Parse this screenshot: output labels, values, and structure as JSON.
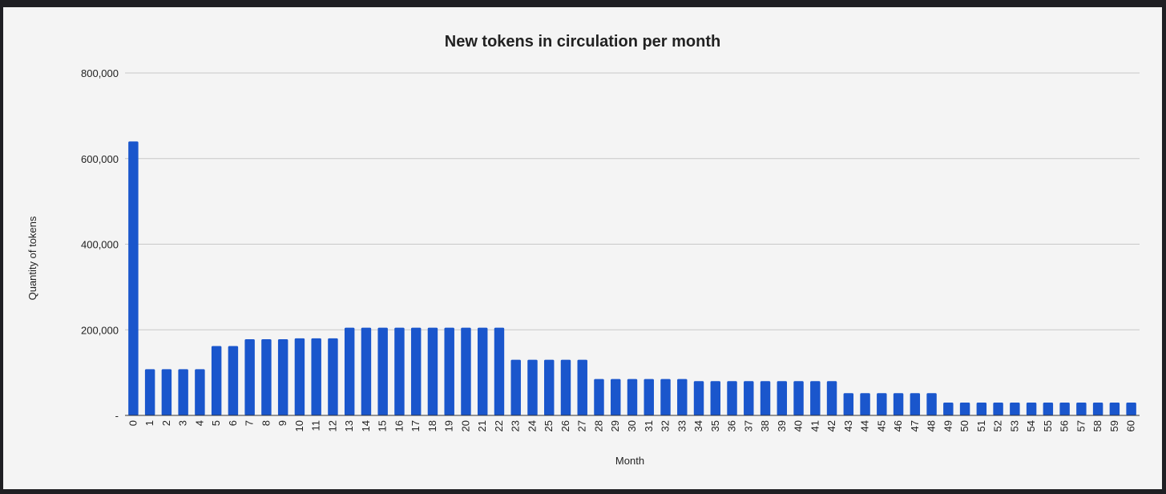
{
  "chart_data": {
    "type": "bar",
    "title": "New tokens in circulation per month",
    "xlabel": "Month",
    "ylabel": "Quantity of tokens",
    "ylim": [
      0,
      800000
    ],
    "yticks": [
      0,
      200000,
      400000,
      600000,
      800000
    ],
    "ytick_labels": [
      "-",
      "200,000",
      "400,000",
      "600,000",
      "800,000"
    ],
    "grid": true,
    "legend": "none",
    "bar_color": "#1a56cc",
    "categories": [
      "0",
      "1",
      "2",
      "3",
      "4",
      "5",
      "6",
      "7",
      "8",
      "9",
      "10",
      "11",
      "12",
      "13",
      "14",
      "15",
      "16",
      "17",
      "18",
      "19",
      "20",
      "21",
      "22",
      "23",
      "24",
      "25",
      "26",
      "27",
      "28",
      "29",
      "30",
      "31",
      "32",
      "33",
      "34",
      "35",
      "36",
      "37",
      "38",
      "39",
      "40",
      "41",
      "42",
      "43",
      "44",
      "45",
      "46",
      "47",
      "48",
      "49",
      "50",
      "51",
      "52",
      "53",
      "54",
      "55",
      "56",
      "57",
      "58",
      "59",
      "60"
    ],
    "values": [
      640000,
      108000,
      108000,
      108000,
      108000,
      162000,
      162000,
      178000,
      178000,
      178000,
      180000,
      180000,
      180000,
      205000,
      205000,
      205000,
      205000,
      205000,
      205000,
      205000,
      205000,
      205000,
      205000,
      130000,
      130000,
      130000,
      130000,
      130000,
      85000,
      85000,
      85000,
      85000,
      85000,
      85000,
      80000,
      80000,
      80000,
      80000,
      80000,
      80000,
      80000,
      80000,
      80000,
      52000,
      52000,
      52000,
      52000,
      52000,
      52000,
      30000,
      30000,
      30000,
      30000,
      30000,
      30000,
      30000,
      30000,
      30000,
      30000,
      30000,
      30000
    ]
  }
}
